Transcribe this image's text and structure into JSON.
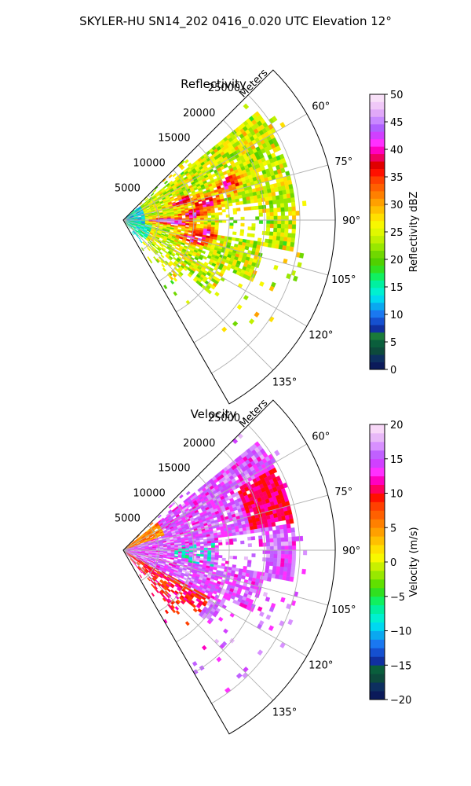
{
  "figure_title": "SKYLER-HU  SN14_202  0416_0.020 UTC Elevation 12°",
  "chart_data": [
    {
      "type": "heatmap",
      "title": "Reflectivity",
      "projection": "polar sector (PPI)",
      "radial_axis_label": "Meters",
      "radial_ticks": [
        "5000",
        "10000",
        "15000",
        "20000",
        "25000"
      ],
      "radial_range": [
        0,
        30000
      ],
      "azimuth_range_deg": [
        45,
        150
      ],
      "azimuth_ticks": [
        "60°",
        "75°",
        "90°",
        "105°",
        "120°",
        "135°"
      ],
      "grid": true,
      "colorbar": {
        "label": "Reflectivity dBZ",
        "range": [
          0,
          50
        ],
        "ticks": [
          "0",
          "5",
          "10",
          "15",
          "20",
          "25",
          "30",
          "35",
          "40",
          "45",
          "50"
        ],
        "colors": [
          "#0b1a5a",
          "#0d2f5f",
          "#0d4a3c",
          "#0a5e3c",
          "#1a7a3a",
          "#1030a0",
          "#1550d0",
          "#1a78f0",
          "#0aa8f0",
          "#00d8f0",
          "#00f0d0",
          "#00f0a0",
          "#10f060",
          "#30e020",
          "#50d000",
          "#70d800",
          "#98e800",
          "#c0f000",
          "#e0f800",
          "#f8f800",
          "#ffe000",
          "#ffc000",
          "#ffa000",
          "#ff8000",
          "#ff6000",
          "#ff4000",
          "#ff1000",
          "#e00000",
          "#f00060",
          "#ff00c0",
          "#ff30ff",
          "#d040ff",
          "#b060ff",
          "#c888ff",
          "#e0a8f8",
          "#f0c8f8",
          "#f8e0f8"
        ]
      },
      "field_summary": "Mostly 18–30 dBZ (green/yellow) echoes with embedded 32–40 dBZ cores (orange/red/magenta) near 8–12 km range, azimuths 70–110°"
    },
    {
      "type": "heatmap",
      "title": "Velocity",
      "projection": "polar sector (PPI)",
      "radial_axis_label": "Meters",
      "radial_ticks": [
        "5000",
        "10000",
        "15000",
        "20000",
        "25000"
      ],
      "radial_range": [
        0,
        30000
      ],
      "azimuth_range_deg": [
        45,
        150
      ],
      "azimuth_ticks": [
        "60°",
        "75°",
        "90°",
        "105°",
        "120°",
        "135°"
      ],
      "grid": true,
      "colorbar": {
        "label": "Velocity (m/s)",
        "range": [
          -20,
          20
        ],
        "ticks": [
          "−20",
          "−15",
          "−10",
          "−5",
          "0",
          "5",
          "10",
          "15",
          "20"
        ],
        "colors": [
          "#0b1a5a",
          "#0d2f5f",
          "#0d4a3c",
          "#0a5e3c",
          "#1030a0",
          "#1550d0",
          "#1a78f0",
          "#0aa8f0",
          "#00d8f0",
          "#00f0d0",
          "#00f0a0",
          "#10f060",
          "#30e020",
          "#60e000",
          "#98e800",
          "#c8f000",
          "#f8f800",
          "#ffe000",
          "#ffc000",
          "#ffa000",
          "#ff8000",
          "#ff6000",
          "#ff4000",
          "#ff1000",
          "#ff0060",
          "#ff00c0",
          "#ff30ff",
          "#d040ff",
          "#c060ff",
          "#d890ff",
          "#e8b8f8",
          "#f8d8f8"
        ]
      },
      "field_summary": "Dominantly outbound 10–18 m/s (red/magenta/purple) with patchy inbound −10 to −5 m/s (cyan) near 10–12 km range, azimuths 85–100°"
    }
  ]
}
